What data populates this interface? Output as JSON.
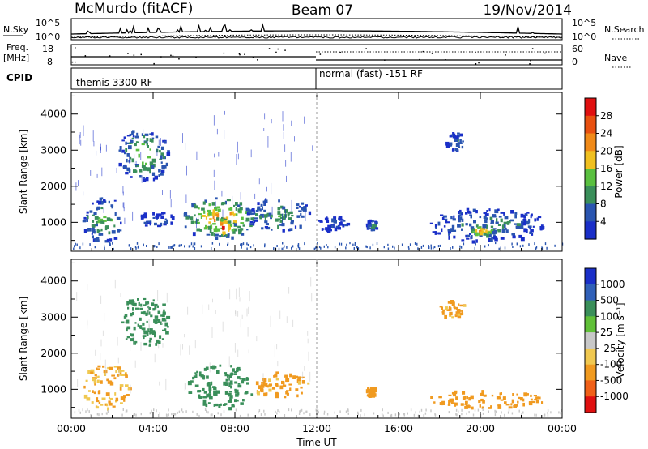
{
  "header": {
    "title": "McMurdo (fitACF)",
    "beam": "Beam 07",
    "date": "19/Nov/2014"
  },
  "strips": {
    "nsky_label": "N.Sky",
    "nsky_ticks": [
      "10^5",
      "10^0"
    ],
    "nsearch_label": "N.Search",
    "nsearch_ticks": [
      "10^5",
      "10^0"
    ],
    "freq_label_1": "Freq.",
    "freq_label_2": "[MHz]",
    "freq_ticks": [
      "18",
      "8"
    ],
    "nave_label": "Nave",
    "nave_ticks": [
      "60",
      "0"
    ],
    "cpid_label": "CPID",
    "cpid_segments": [
      {
        "text": "themis 3300 RF",
        "start": "00:00"
      },
      {
        "text": "normal (fast) -151 RF",
        "start": "12:00"
      }
    ]
  },
  "colors": {
    "power_scale": [
      "#1a2fc8",
      "#2a55b0",
      "#3a8f5a",
      "#5ac040",
      "#f0c020",
      "#f08a18",
      "#e85010",
      "#e01010"
    ],
    "velocity_scale": [
      "#e01010",
      "#f06018",
      "#f09a20",
      "#f0c850",
      "#c8c8c8",
      "#60c038",
      "#3a8f5a",
      "#3060b8",
      "#1a2fc8"
    ]
  },
  "chart_data": [
    {
      "type": "heatmap",
      "title": "Power",
      "xlabel": "",
      "ylabel": "Slant Range [km]",
      "x_ticks": [
        "00:00",
        "04:00",
        "08:00",
        "12:00",
        "16:00",
        "20:00",
        "00:00"
      ],
      "y_ticks": [
        1000,
        2000,
        3000,
        4000
      ],
      "ylim": [
        200,
        4600
      ],
      "colorbar_label": "Power [dB]",
      "colorbar_ticks": [
        4,
        8,
        12,
        16,
        20,
        24,
        28
      ],
      "regions": [
        {
          "t": [
            0.5,
            2.6
          ],
          "r": [
            500,
            1700
          ],
          "value": 14
        },
        {
          "t": [
            2.3,
            4.7
          ],
          "r": [
            2200,
            3600
          ],
          "value": 16
        },
        {
          "t": [
            3.2,
            5.0
          ],
          "r": [
            900,
            1300
          ],
          "value": 8
        },
        {
          "t": [
            5.4,
            9.0
          ],
          "r": [
            600,
            1700
          ],
          "value": 24
        },
        {
          "t": [
            6.6,
            8.0
          ],
          "r": [
            650,
            1150
          ],
          "value": 30
        },
        {
          "t": [
            8.5,
            11.6
          ],
          "r": [
            800,
            1700
          ],
          "value": 12
        },
        {
          "t": [
            12.0,
            13.5
          ],
          "r": [
            800,
            1200
          ],
          "value": 6
        },
        {
          "t": [
            14.4,
            14.9
          ],
          "r": [
            800,
            1100
          ],
          "value": 12
        },
        {
          "t": [
            17.5,
            23.0
          ],
          "r": [
            500,
            1400
          ],
          "value": 10
        },
        {
          "t": [
            19.4,
            20.7
          ],
          "r": [
            650,
            950
          ],
          "value": 24
        },
        {
          "t": [
            18.3,
            19.2
          ],
          "r": [
            3000,
            3500
          ],
          "value": 10
        }
      ]
    },
    {
      "type": "heatmap",
      "title": "Velocity",
      "xlabel": "Time UT",
      "ylabel": "Slant Range [km]",
      "x_ticks": [
        "00:00",
        "04:00",
        "08:00",
        "12:00",
        "16:00",
        "20:00",
        "00:00"
      ],
      "y_ticks": [
        1000,
        2000,
        3000,
        4000
      ],
      "ylim": [
        200,
        4600
      ],
      "colorbar_label": "Velocity [m s⁻¹]",
      "colorbar_ticks": [
        1000,
        500,
        100,
        25,
        -25,
        -100,
        -500,
        -1000
      ],
      "regions": [
        {
          "t": [
            0.5,
            2.8
          ],
          "r": [
            500,
            1700
          ],
          "value": -100
        },
        {
          "t": [
            2.3,
            4.7
          ],
          "r": [
            2200,
            3600
          ],
          "value": 200
        },
        {
          "t": [
            5.6,
            8.8
          ],
          "r": [
            500,
            1700
          ],
          "value": 200
        },
        {
          "t": [
            8.8,
            11.6
          ],
          "r": [
            800,
            1500
          ],
          "value": -150
        },
        {
          "t": [
            14.4,
            14.8
          ],
          "r": [
            800,
            1100
          ],
          "value": -200
        },
        {
          "t": [
            17.5,
            23.0
          ],
          "r": [
            500,
            1000
          ],
          "value": -200
        },
        {
          "t": [
            18.0,
            19.2
          ],
          "r": [
            3000,
            3500
          ],
          "value": -150
        }
      ]
    }
  ]
}
